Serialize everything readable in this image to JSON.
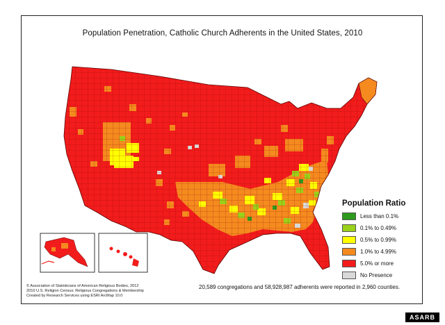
{
  "title": "Population Penetration, Catholic Church Adherents in the United States, 2010",
  "legend": {
    "title": "Population Ratio",
    "items": [
      {
        "label": "Less than 0.1%",
        "color": "#2e9a1e"
      },
      {
        "label": "0.1% to 0.49%",
        "color": "#9ad11a"
      },
      {
        "label": "0.5% to 0.99%",
        "color": "#ffff00"
      },
      {
        "label": "1.0% to 4.99%",
        "color": "#f58a1f"
      },
      {
        "label": "5.0% or more",
        "color": "#f21c1c"
      },
      {
        "label": "No Presence",
        "color": "#d9d9d9"
      }
    ]
  },
  "credits": [
    "© Association of Statisticians of American Religious Bodies, 2012",
    "2010 U.S. Religion Census: Religious Congregations & Membership",
    "Created by Research Services using ESRI ArcMap 10.0"
  ],
  "summary": "20,589 congregations and 58,928,987 adherents were reported in 2,960 counties.",
  "badge": "ASARB",
  "map_colors": {
    "high": "#f21c1c",
    "mid": "#f58a1f",
    "low": "#ffff00",
    "verylow": "#9ad11a",
    "lowest": "#2e9a1e",
    "none": "#d9d9d9",
    "border": "#7a0000"
  }
}
